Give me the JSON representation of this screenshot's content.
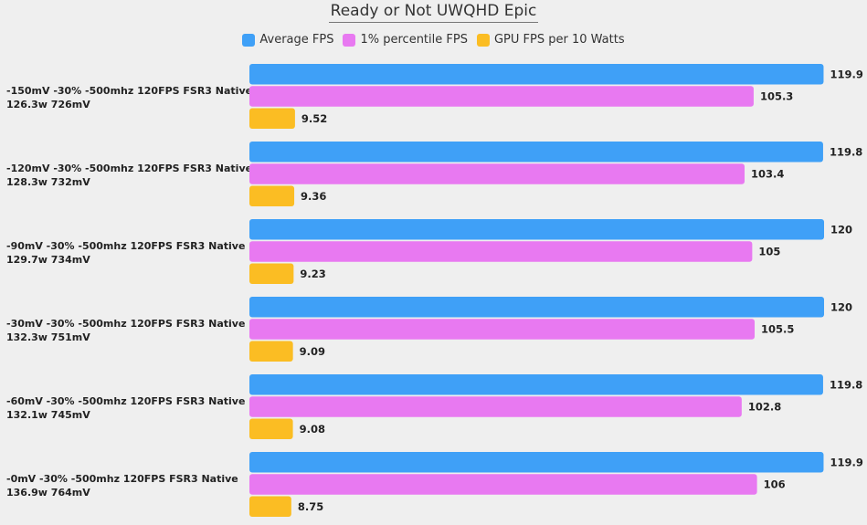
{
  "chart_data": {
    "type": "bar",
    "orientation": "horizontal",
    "title": "Ready or Not UWQHD Epic",
    "legend_position": "top-center",
    "grid": false,
    "xlim": [
      0,
      120
    ],
    "categories": [
      [
        "-150mV -30% -500mhz 120FPS FSR3 Native",
        "126.3w 726mV"
      ],
      [
        "-120mV -30% -500mhz 120FPS FSR3 Native",
        "128.3w 732mV"
      ],
      [
        "-90mV -30% -500mhz 120FPS FSR3 Native",
        "129.7w 734mV"
      ],
      [
        "-30mV -30% -500mhz 120FPS FSR3 Native",
        "132.3w 751mV"
      ],
      [
        "-60mV -30% -500mhz 120FPS FSR3 Native",
        "132.1w 745mV"
      ],
      [
        "-0mV -30% -500mhz 120FPS FSR3 Native",
        "136.9w 764mV"
      ]
    ],
    "series": [
      {
        "name": "Average FPS",
        "color": "#3fa0f7",
        "values": [
          119.9,
          119.8,
          120,
          120,
          119.8,
          119.9
        ]
      },
      {
        "name": "1% percentile FPS",
        "color": "#e879f1",
        "values": [
          105.3,
          103.4,
          105,
          105.5,
          102.8,
          106
        ]
      },
      {
        "name": "GPU FPS per 10 Watts",
        "color": "#fbbd23",
        "values": [
          9.52,
          9.36,
          9.23,
          9.09,
          9.08,
          8.75
        ]
      }
    ]
  }
}
